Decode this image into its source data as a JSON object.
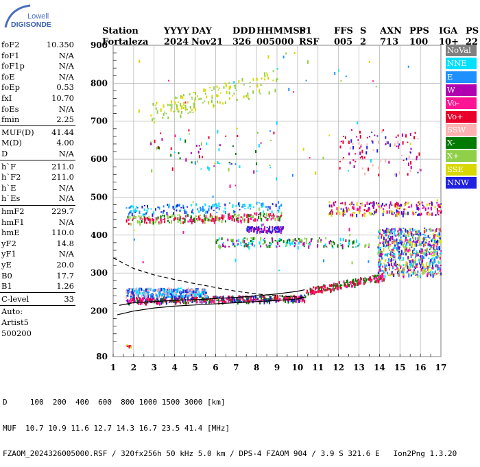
{
  "logo": {
    "line1": "Lowell",
    "line2": "DIGISONDE"
  },
  "header": {
    "cols": [
      {
        "label": "Station",
        "value": "Fortaleza"
      },
      {
        "label": "YYYY",
        "value": "2024"
      },
      {
        "label": "DAY",
        "value": "Nov21"
      },
      {
        "label": "DDD",
        "value": "326"
      },
      {
        "label": "HHMMSS",
        "value": "005000"
      },
      {
        "label": "P1",
        "value": "RSF"
      },
      {
        "label": "FFS",
        "value": "005"
      },
      {
        "label": "S",
        "value": "2"
      },
      {
        "label": "AXN",
        "value": "713"
      },
      {
        "label": "PPS",
        "value": "100"
      },
      {
        "label": "IGA",
        "value": "10+"
      },
      {
        "label": "PS",
        "value": "22"
      }
    ]
  },
  "params": [
    {
      "name": "foF2",
      "value": "10.350"
    },
    {
      "name": "foF1",
      "value": "N/A"
    },
    {
      "name": "foF1p",
      "value": "N/A"
    },
    {
      "name": "foE",
      "value": "N/A"
    },
    {
      "name": "foEp",
      "value": "0.53"
    },
    {
      "name": "fxI",
      "value": "10.70"
    },
    {
      "name": "foEs",
      "value": "N/A"
    },
    {
      "name": "fmin",
      "value": "2.25",
      "sep_after": true
    },
    {
      "name": "MUF(D)",
      "value": "41.44"
    },
    {
      "name": "M(D)",
      "value": "4.00"
    },
    {
      "name": "D",
      "value": "N/A",
      "sep_after": true
    },
    {
      "name": "h`F",
      "value": "211.0"
    },
    {
      "name": "h`F2",
      "value": "211.0"
    },
    {
      "name": "h`E",
      "value": "N/A"
    },
    {
      "name": "h`Es",
      "value": "N/A",
      "sep_after": true
    },
    {
      "name": "hmF2",
      "value": "229.7"
    },
    {
      "name": "hmF1",
      "value": "N/A"
    },
    {
      "name": "hmE",
      "value": "110.0"
    },
    {
      "name": "yF2",
      "value": "14.8"
    },
    {
      "name": "yF1",
      "value": "N/A"
    },
    {
      "name": "yE",
      "value": "20.0"
    },
    {
      "name": "B0",
      "value": "17.7"
    },
    {
      "name": "B1",
      "value": "1.26",
      "sep_after": true
    },
    {
      "name": "C-level",
      "value": "33",
      "sep_after": true
    },
    {
      "name": "Auto:",
      "value": ""
    },
    {
      "name": "Artist5",
      "value": ""
    },
    {
      "name": "500200",
      "value": ""
    }
  ],
  "legend": [
    {
      "label": "NoVal",
      "color": "#808080"
    },
    {
      "label": "NNE",
      "color": "#00e0ff"
    },
    {
      "label": "E",
      "color": "#1e90ff"
    },
    {
      "label": "W",
      "color": "#b000b0"
    },
    {
      "label": "Vo-",
      "color": "#ff1493"
    },
    {
      "label": "Vo+",
      "color": "#e8002a"
    },
    {
      "label": "SSW",
      "color": "#ffb0b0"
    },
    {
      "label": "X-",
      "color": "#007a00"
    },
    {
      "label": "X+",
      "color": "#90d048"
    },
    {
      "label": "SSE",
      "color": "#d8d800"
    },
    {
      "label": "NNW",
      "color": "#2020e0"
    }
  ],
  "chart_data": {
    "type": "scatter",
    "xlim": [
      1,
      17
    ],
    "ylim": [
      80,
      900
    ],
    "x_ticks": [
      1,
      2,
      3,
      4,
      5,
      6,
      7,
      8,
      9,
      10,
      11,
      12,
      13,
      14,
      15,
      16,
      17
    ],
    "y_ticks": [
      80,
      200,
      300,
      400,
      500,
      600,
      700,
      800,
      900
    ],
    "grid": true,
    "traces": [
      {
        "name": "ordinary",
        "style": "solid",
        "x": [
          1.2,
          2.0,
          3.0,
          4.0,
          5.0,
          6.0,
          7.0,
          8.0,
          9.0,
          10.0,
          10.35
        ],
        "y": [
          190,
          200,
          208,
          213,
          216,
          219,
          222,
          225,
          228,
          232,
          236
        ]
      },
      {
        "name": "extraordinary",
        "style": "dashed",
        "x": [
          1.0,
          2.0,
          3.0,
          4.0,
          5.0,
          6.0,
          7.0,
          8.0,
          9.0,
          10.0,
          10.35
        ],
        "y": [
          340,
          312,
          295,
          283,
          272,
          262,
          252,
          245,
          240,
          237,
          236
        ]
      },
      {
        "name": "model-profile",
        "style": "solid",
        "x": [
          1.3,
          2.0,
          3.0,
          4.0,
          5.0,
          6.0,
          7.0,
          8.0,
          9.0,
          10.0,
          10.35
        ],
        "y": [
          215,
          222,
          225,
          228,
          230,
          233,
          236,
          240,
          245,
          252,
          256
        ]
      }
    ],
    "echo_bands": [
      {
        "x0": 1.6,
        "x1": 10.4,
        "y0": 222,
        "y1": 238,
        "slope": 6,
        "colors": [
          "#e8002a",
          "#ff1493",
          "#007a00",
          "#2020e0"
        ],
        "n": 520
      },
      {
        "x0": 1.6,
        "x1": 5.6,
        "y0": 240,
        "y1": 262,
        "slope": 0,
        "colors": [
          "#00e0ff",
          "#1e90ff",
          "#ffb0b0",
          "#2020e0"
        ],
        "n": 320
      },
      {
        "x0": 10.4,
        "x1": 14.2,
        "y0": 244,
        "y1": 262,
        "slope": 40,
        "colors": [
          "#e8002a",
          "#ff1493",
          "#007a00"
        ],
        "n": 180
      },
      {
        "x0": 13.9,
        "x1": 17.0,
        "y0": 295,
        "y1": 420,
        "slope": 0,
        "colors": [
          "#2020e0",
          "#00e0ff",
          "#d8d800",
          "#b000b0",
          "#1e90ff",
          "#90d048",
          "#ff1493"
        ],
        "n": 700
      },
      {
        "x0": 1.6,
        "x1": 9.2,
        "y0": 432,
        "y1": 452,
        "slope": 10,
        "colors": [
          "#e8002a",
          "#ff1493",
          "#007a00",
          "#90d048"
        ],
        "n": 260
      },
      {
        "x0": 1.6,
        "x1": 9.2,
        "y0": 455,
        "y1": 480,
        "slope": 10,
        "colors": [
          "#00e0ff",
          "#1e90ff",
          "#2020e0"
        ],
        "n": 140
      },
      {
        "x0": 11.5,
        "x1": 17.0,
        "y0": 455,
        "y1": 490,
        "slope": 0,
        "colors": [
          "#b000b0",
          "#e8002a",
          "#d8d800",
          "#2020e0",
          "#ff1493"
        ],
        "n": 210
      },
      {
        "x0": 7.5,
        "x1": 9.3,
        "y0": 410,
        "y1": 425,
        "slope": 0,
        "colors": [
          "#2020e0",
          "#b000b0"
        ],
        "n": 90
      },
      {
        "x0": 6.0,
        "x1": 13.5,
        "y0": 370,
        "y1": 395,
        "slope": 0,
        "colors": [
          "#00e0ff",
          "#007a00",
          "#90d048",
          "#b000b0"
        ],
        "n": 170
      },
      {
        "x0": 2.8,
        "x1": 9.0,
        "y0": 695,
        "y1": 750,
        "slope": 90,
        "colors": [
          "#d8d800",
          "#90d048"
        ],
        "n": 150
      },
      {
        "x0": 2.5,
        "x1": 9.0,
        "y0": 570,
        "y1": 680,
        "slope": 0,
        "colors": [
          "#b000b0",
          "#e8002a",
          "#007a00",
          "#90d048",
          "#00e0ff"
        ],
        "n": 60
      },
      {
        "x0": 12.0,
        "x1": 16.0,
        "y0": 560,
        "y1": 680,
        "slope": 0,
        "colors": [
          "#ffb0b0",
          "#b000b0",
          "#e8002a",
          "#2020e0"
        ],
        "n": 100
      },
      {
        "x0": 1.5,
        "x1": 17.0,
        "y0": 300,
        "y1": 900,
        "slope": 0,
        "colors": [
          "#00e0ff",
          "#1e90ff",
          "#90d048",
          "#ff1493",
          "#d8d800"
        ],
        "n": 70
      },
      {
        "x0": 1.6,
        "x1": 1.85,
        "y0": 108,
        "y1": 112,
        "slope": 0,
        "colors": [
          "#d8d800",
          "#e8002a",
          "#b000b0"
        ],
        "n": 8
      }
    ]
  },
  "footer": {
    "line1": "D     100  200  400  600  800 1000 1500 3000 [km]",
    "line2": "MUF  10.7 10.9 11.6 12.7 14.3 16.7 23.5 41.4 [MHz]",
    "line3": "FZAOM_2024326005000.RSF / 320fx256h 50 kHz 5.0 km / DPS-4 FZAOM 904 / 3.9 S 321.6 E   Ion2Png 1.3.20"
  }
}
